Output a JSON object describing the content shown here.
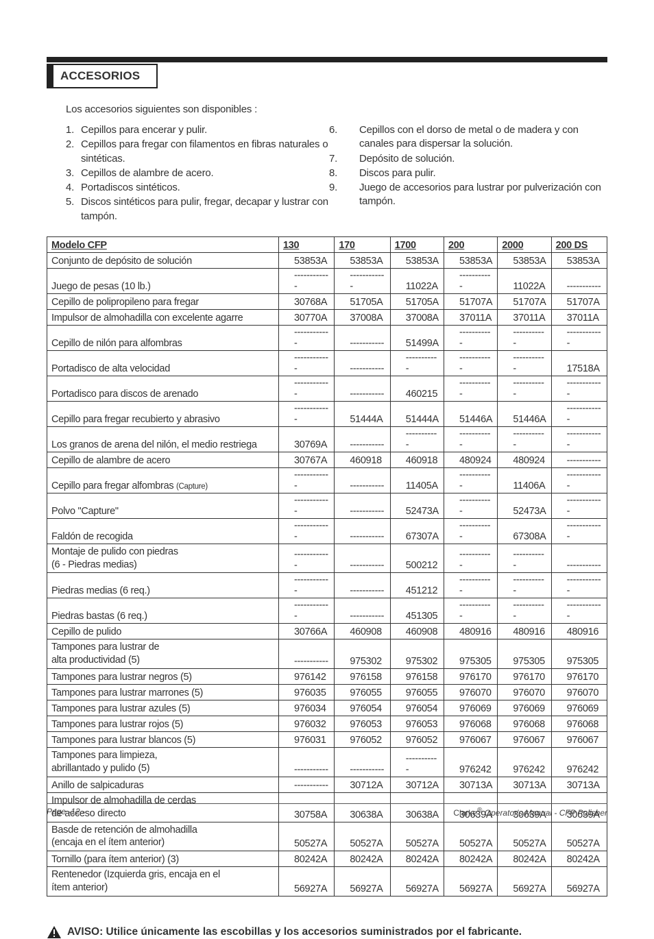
{
  "heading": "ACCESORIOS",
  "intro": "Los accesorios siguientes son disponibles :",
  "list_left": [
    "Cepillos para encerar y pulir.",
    "Cepillos para fregar con filamentos en fibras naturales o sintéticas.",
    "Cepillos de alambre de acero.",
    "Portadiscos sintéticos.",
    "Discos sintéticos para pulir, fregar, decapar y lustrar con tampón."
  ],
  "list_right": [
    "Cepillos con el dorso de metal o de madera y con canales para dispersar la solución.",
    "Depósito de solución.",
    "Discos para pulir.",
    "Juego de accesorios para lustrar por pulverización con tampón."
  ],
  "table": {
    "header": [
      "Modelo CFP",
      "130",
      "170",
      "1700",
      "200",
      "2000",
      "200 DS"
    ],
    "rows": [
      {
        "desc": "Conjunto de depósito de solución",
        "c": [
          "53853A",
          "53853A",
          "53853A",
          "53853A",
          "53853A",
          "53853A"
        ]
      },
      {
        "desc": "Juego de pesas  (10 lb.)",
        "c": [
          "------------",
          "------------",
          "11022A",
          "-----------",
          "11022A",
          "-----------"
        ]
      },
      {
        "desc": "Cepillo de polipropileno para fregar",
        "c": [
          "30768A",
          "51705A",
          "51705A",
          "51707A",
          "51707A",
          "51707A"
        ]
      },
      {
        "desc": "Impulsor de almohadilla con excelente agarre",
        "c": [
          "30770A",
          "37008A",
          "37008A",
          "37011A",
          "37011A",
          "37011A"
        ]
      },
      {
        "desc": "Cepillo de nilón para alfombras",
        "c": [
          "------------",
          "-----------",
          "51499A",
          "-----------",
          "-----------",
          "------------"
        ]
      },
      {
        "desc": "Portadisco de alta velocidad",
        "c": [
          "------------",
          "-----------",
          "-----------",
          "-----------",
          "-----------",
          "17518A"
        ]
      },
      {
        "desc": "Portadisco para discos de arenado",
        "c": [
          "------------",
          "-----------",
          "460215",
          "-----------",
          "-----------",
          "------------"
        ]
      },
      {
        "desc": "Cepillo para fregar recubierto y abrasivo",
        "c": [
          "------------",
          "51444A",
          "51444A",
          "51446A",
          "51446A",
          "------------"
        ]
      },
      {
        "desc": "Los granos de arena del nilón, el medio restriega",
        "c": [
          "30769A",
          "-----------",
          "-----------",
          "-----------",
          "-----------",
          "------------"
        ]
      },
      {
        "desc": "Cepillo de alambre de acero",
        "c": [
          "30767A",
          "460918",
          "460918",
          "480924",
          "480924",
          "-----------"
        ]
      },
      {
        "desc": "Cepillo para fregar alfombras  <span class=\"small\">(Capture)</span>",
        "c": [
          "------------",
          "-----------",
          "11405A",
          "-----------",
          "11406A",
          "------------"
        ]
      },
      {
        "desc": "Polvo \"Capture\"",
        "c": [
          "------------",
          "-----------",
          "52473A",
          "-----------",
          "52473A",
          "------------"
        ]
      },
      {
        "desc": "Faldón de recogida",
        "c": [
          "------------",
          "-----------",
          "67307A",
          "-----------",
          "67308A",
          "------------"
        ]
      },
      {
        "desc": "Montaje de pulido con piedras<br>(6 - Piedras medias)",
        "two": true,
        "c": [
          "------------",
          "-----------",
          "500212",
          "-----------",
          "-----------",
          "-----------"
        ]
      },
      {
        "desc": "Piedras medias (6 req.)",
        "c": [
          "------------",
          "-----------",
          "451212",
          "-----------",
          "-----------",
          "------------"
        ]
      },
      {
        "desc": "Piedras bastas (6 req.)",
        "c": [
          "------------",
          "-----------",
          "451305",
          "-----------",
          "-----------",
          "------------"
        ]
      },
      {
        "desc": "Cepillo de pulido",
        "c": [
          "30766A",
          "460908",
          "460908",
          "480916",
          "480916",
          "480916"
        ]
      },
      {
        "desc": "Tampones para lustrar de<br>alta productividad (5)",
        "two": true,
        "c": [
          "-----------",
          "975302",
          "975302",
          "975305",
          "975305",
          "975305"
        ]
      },
      {
        "desc": "Tampones para lustrar negros (5)",
        "c": [
          "976142",
          "976158",
          "976158",
          "976170",
          "976170",
          "976170"
        ]
      },
      {
        "desc": "Tampones para lustrar marrones (5)",
        "c": [
          "976035",
          "976055",
          "976055",
          "976070",
          "976070",
          "976070"
        ]
      },
      {
        "desc": "Tampones para lustrar azules (5)",
        "c": [
          "976034",
          "976054",
          "976054",
          "976069",
          "976069",
          "976069"
        ]
      },
      {
        "desc": "Tampones para lustrar rojos (5)",
        "c": [
          "976032",
          "976053",
          "976053",
          "976068",
          "976068",
          "976068"
        ]
      },
      {
        "desc": "Tampones para lustrar blancos (5)",
        "c": [
          "976031",
          "976052",
          "976052",
          "976067",
          "976067",
          "976067"
        ]
      },
      {
        "desc": "Tampones para limpieza,<br>abrillantado y pulido (5)",
        "two": true,
        "c": [
          "-----------",
          "-----------",
          "-----------",
          "976242",
          "976242",
          "976242"
        ]
      },
      {
        "desc": "Anillo de salpicaduras",
        "c": [
          "-----------",
          "30712A",
          "30712A",
          "30713A",
          "30713A",
          "30713A"
        ]
      },
      {
        "desc": "Impulsor de almohadilla de cerdas<br>de acceso directo",
        "two": true,
        "c": [
          "30758A",
          "30638A",
          "30638A",
          "30639A",
          "30639A",
          "30639A"
        ]
      },
      {
        "desc": "Basde de retención de almohadilla<br>(encaja en el ítem anterior)",
        "two": true,
        "c": [
          "50527A",
          "50527A",
          "50527A",
          "50527A",
          "50527A",
          "50527A"
        ]
      },
      {
        "desc": "Tornillo (para ítem anterior) (3)",
        "c": [
          "80242A",
          "80242A",
          "80242A",
          "80242A",
          "80242A",
          "80242A"
        ]
      },
      {
        "desc": "Rentenedor (Izquierda gris, encaja en el<br>ítem anterior)",
        "two": true,
        "c": [
          "56927A",
          "56927A",
          "56927A",
          "56927A",
          "56927A",
          "56927A"
        ]
      }
    ]
  },
  "notice": "AVISO: Utilice únicamente las escobillas y los accesorios suministrados por el fabricante.",
  "footer_left": "Page  -12 -",
  "footer_right_brand": "Clarke",
  "footer_right_rest": " Operator's Manual - CFP Polisher"
}
